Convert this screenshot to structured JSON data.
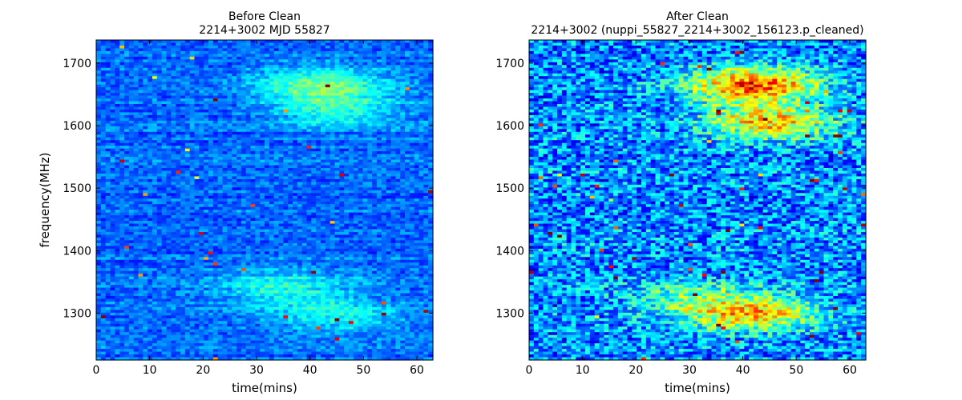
{
  "chart_data": [
    {
      "type": "heatmap",
      "title": "Before Clean",
      "subtitle": "2214+3002 MJD 55827",
      "xlabel": "time(mins)",
      "ylabel": "frequency(MHz)",
      "xlim": [
        0,
        63
      ],
      "ylim": [
        1225,
        1737
      ],
      "xticks": [
        0,
        10,
        20,
        30,
        40,
        50,
        60
      ],
      "yticks": [
        1300,
        1400,
        1500,
        1600,
        1700
      ],
      "colormap": "jet",
      "features": [
        {
          "x": 42,
          "y": 1665,
          "intensity": 0.25
        },
        {
          "x": 45,
          "y": 1625,
          "intensity": 0.18
        },
        {
          "x": 35,
          "y": 1340,
          "intensity": 0.18
        },
        {
          "x": 45,
          "y": 1295,
          "intensity": 0.15
        }
      ]
    },
    {
      "type": "heatmap",
      "title": "After Clean",
      "subtitle": "2214+3002  (nuppi_55827_2214+3002_156123.p_cleaned)",
      "xlabel": "time(mins)",
      "ylabel": "",
      "xlim": [
        0,
        63
      ],
      "ylim": [
        1225,
        1737
      ],
      "xticks": [
        0,
        10,
        20,
        30,
        40,
        50,
        60
      ],
      "yticks": [
        1300,
        1400,
        1500,
        1600,
        1700
      ],
      "colormap": "jet",
      "features": [
        {
          "x": 42,
          "y": 1665,
          "intensity": 0.55
        },
        {
          "x": 45,
          "y": 1605,
          "intensity": 0.4
        },
        {
          "x": 42,
          "y": 1300,
          "intensity": 0.4
        },
        {
          "x": 30,
          "y": 1325,
          "intensity": 0.2
        }
      ]
    }
  ]
}
